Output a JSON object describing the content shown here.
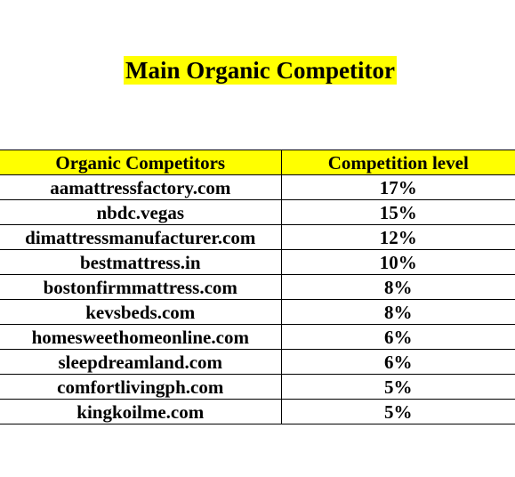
{
  "title": "Main Organic Competitor",
  "table": {
    "headers": [
      "Organic Competitors",
      "Competition level"
    ],
    "rows": [
      {
        "domain": "aamattressfactory.com",
        "level": "17%"
      },
      {
        "domain": "nbdc.vegas",
        "level": "15%"
      },
      {
        "domain": "dimattressmanufacturer.com",
        "level": "12%"
      },
      {
        "domain": "bestmattress.in",
        "level": "10%"
      },
      {
        "domain": "bostonfirmmattress.com",
        "level": "8%"
      },
      {
        "domain": "kevsbeds.com",
        "level": "8%"
      },
      {
        "domain": "homesweethomeonline.com",
        "level": "6%"
      },
      {
        "domain": "sleepdreamland.com",
        "level": "6%"
      },
      {
        "domain": "comfortlivingph.com",
        "level": "5%"
      },
      {
        "domain": "kingkoilme.com",
        "level": "5%"
      }
    ]
  },
  "colors": {
    "highlight": "#ffff00",
    "text": "#000000",
    "border": "#000000"
  }
}
